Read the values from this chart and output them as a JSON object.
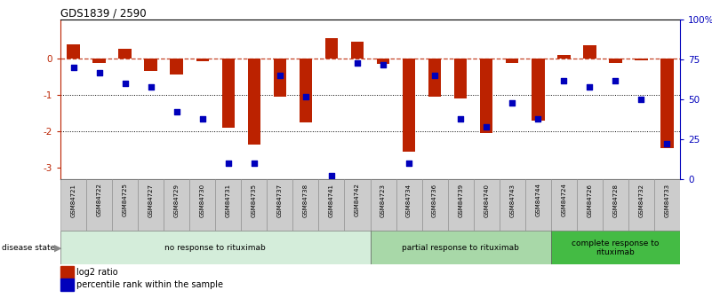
{
  "title": "GDS1839 / 2590",
  "samples": [
    "GSM84721",
    "GSM84722",
    "GSM84725",
    "GSM84727",
    "GSM84729",
    "GSM84730",
    "GSM84731",
    "GSM84735",
    "GSM84737",
    "GSM84738",
    "GSM84741",
    "GSM84742",
    "GSM84723",
    "GSM84734",
    "GSM84736",
    "GSM84739",
    "GSM84740",
    "GSM84743",
    "GSM84744",
    "GSM84724",
    "GSM84726",
    "GSM84728",
    "GSM84732",
    "GSM84733"
  ],
  "log2_ratio": [
    0.38,
    -0.13,
    0.25,
    -0.35,
    -0.45,
    -0.07,
    -1.9,
    -2.35,
    -1.05,
    -1.75,
    0.55,
    0.45,
    -0.15,
    -2.55,
    -1.05,
    -1.1,
    -2.05,
    -0.13,
    -1.7,
    0.1,
    0.35,
    -0.13,
    -0.05,
    -2.45
  ],
  "percentile": [
    70,
    67,
    60,
    58,
    42,
    38,
    10,
    10,
    65,
    52,
    2,
    73,
    72,
    10,
    65,
    38,
    33,
    48,
    38,
    62,
    58,
    62,
    50,
    22
  ],
  "groups": [
    {
      "label": "no response to rituximab",
      "start": 0,
      "end": 12,
      "color": "#d4edda"
    },
    {
      "label": "partial response to rituximab",
      "start": 12,
      "end": 19,
      "color": "#a8d8a8"
    },
    {
      "label": "complete response to\nrituximab",
      "start": 19,
      "end": 24,
      "color": "#44bb44"
    }
  ],
  "bar_color": "#bb2200",
  "dot_color": "#0000bb",
  "ylim_left": [
    -3.3,
    1.05
  ],
  "yticks_left": [
    0,
    -1,
    -2,
    -3
  ],
  "ytick_labels_left": [
    "0",
    "-1",
    "-2",
    "-3"
  ],
  "yticks_right": [
    0,
    25,
    50,
    75,
    100
  ],
  "ytick_labels_right": [
    "0",
    "25",
    "50",
    "75",
    "100%"
  ],
  "bg_color": "#ffffff",
  "label_box_color": "#cccccc",
  "legend_items": [
    {
      "label": "log2 ratio",
      "color": "#bb2200",
      "marker": "s"
    },
    {
      "label": "percentile rank within the sample",
      "color": "#0000bb",
      "marker": "s"
    }
  ]
}
